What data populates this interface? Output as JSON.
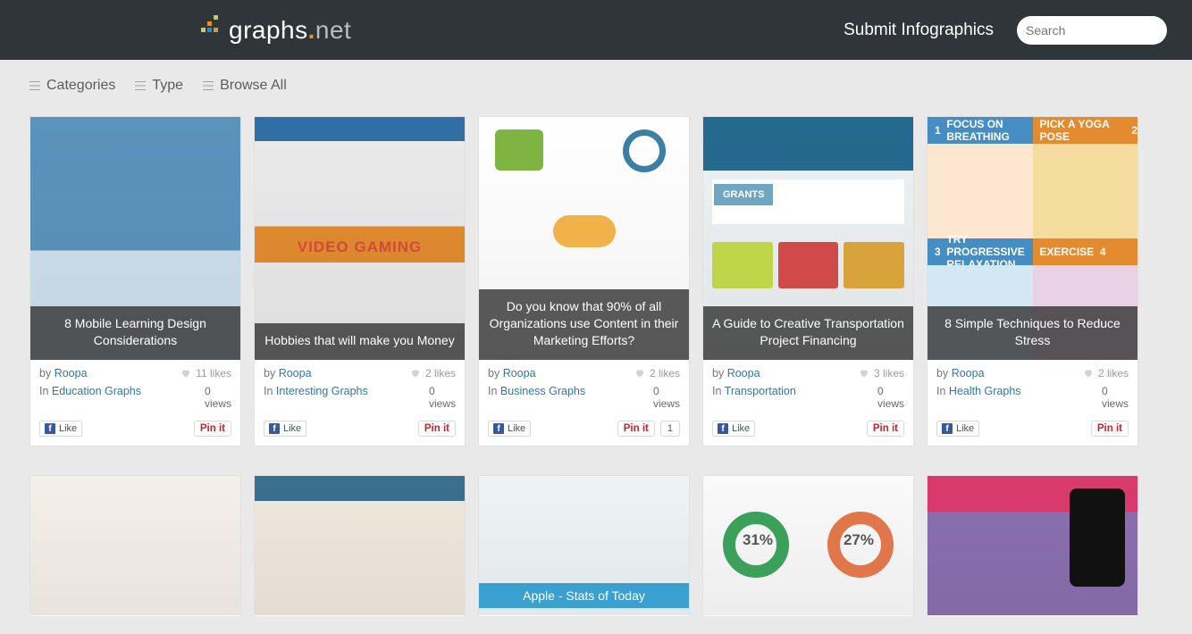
{
  "logo": {
    "white": "graphs",
    "grey": "net"
  },
  "header": {
    "submit": "Submit Infographics",
    "search_placeholder": "Search"
  },
  "nav": {
    "categories": "Categories",
    "type": "Type",
    "browse": "Browse All"
  },
  "labels": {
    "by": "by",
    "in": "In",
    "views": "views",
    "like": "Like",
    "pin": "Pin it"
  },
  "stress_quadrants": {
    "q1": "FOCUS ON BREATHING",
    "q1_num": "1",
    "q2": "PICK A YOGA POSE",
    "q2_num": "2",
    "q3": "TRY PROGRESSIVE RELAXATION",
    "q3_num": "3",
    "q4": "EXERCISE",
    "q4_num": "4"
  },
  "trans": {
    "grants": "GRANTS"
  },
  "gaming": {
    "title": "VIDEO GAMING"
  },
  "r2": {
    "apple": "Apple - Stats of Today",
    "d1": "31%",
    "d2": "27%"
  },
  "cards": [
    {
      "title": "8 Mobile Learning Design Considerations",
      "author": "Roopa",
      "likes": "11 likes",
      "category": "Education Graphs",
      "views": "0"
    },
    {
      "title": "Hobbies that will make you Money",
      "author": "Roopa",
      "likes": "2 likes",
      "category": "Interesting Graphs",
      "views": "0"
    },
    {
      "title": "Do you know that 90% of all Organizations use Content in their Marketing Efforts?",
      "author": "Roopa",
      "likes": "2 likes",
      "category": "Business Graphs",
      "views": "0"
    },
    {
      "title": "A Guide to Creative Transportation Project Financing",
      "author": "Roopa",
      "likes": "3 likes",
      "category": "Transportation",
      "views": "0"
    },
    {
      "title": "8 Simple Techniques to Reduce Stress",
      "author": "Roopa",
      "likes": "2 likes",
      "category": "Health Graphs",
      "views": "0"
    }
  ],
  "pin_count_card": 2,
  "pin_count_value": "1",
  "colors": {
    "header_bg": "#2f3538",
    "page_bg": "#e9e9e9",
    "link": "#2a7aa8",
    "pin_red": "#c8232c",
    "fb_blue": "#3b5998"
  }
}
